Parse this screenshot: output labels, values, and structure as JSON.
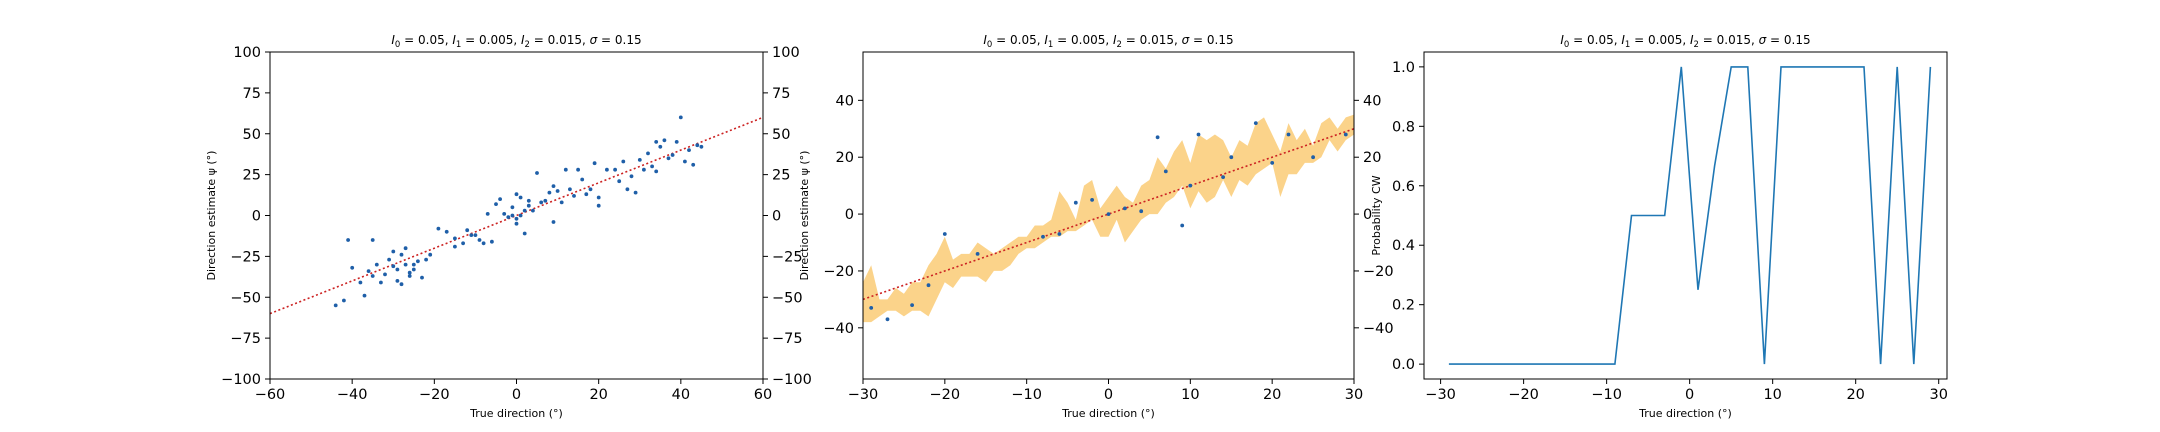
{
  "chart_data": [
    {
      "type": "scatter",
      "title": "I_0 = 0.05, I_1 = 0.005, I_2 = 0.015, σ = 0.15",
      "title_parts": {
        "I0": "0.05",
        "I1": "0.005",
        "I2": "0.015",
        "sigma": "0.15"
      },
      "xlabel": "True direction (°)",
      "ylabel": "Direction estimate ψ (°)",
      "xlim": [
        -60,
        60
      ],
      "ylim": [
        -100,
        100
      ],
      "xticks": [
        -60,
        -40,
        -20,
        0,
        20,
        40,
        60
      ],
      "yticks": [
        -100,
        -75,
        -50,
        -25,
        0,
        25,
        50,
        75,
        100
      ],
      "right_axis_ticks": [
        -100,
        -75,
        -50,
        -25,
        0,
        25,
        50,
        75,
        100
      ],
      "grid": false,
      "colors": {
        "points": "#1f5fa8",
        "fit_line": "#cc2222"
      },
      "fit_line": {
        "slope": 1,
        "intercept": 0,
        "style": "dotted"
      },
      "points": [
        [
          -44,
          -55
        ],
        [
          -42,
          -52
        ],
        [
          -41,
          -15
        ],
        [
          -40,
          -32
        ],
        [
          -38,
          -41
        ],
        [
          -37,
          -49
        ],
        [
          -36,
          -34
        ],
        [
          -35,
          -37
        ],
        [
          -35,
          -15
        ],
        [
          -34,
          -30
        ],
        [
          -33,
          -41
        ],
        [
          -32,
          -36
        ],
        [
          -31,
          -27
        ],
        [
          -30,
          -31
        ],
        [
          -30,
          -22
        ],
        [
          -29,
          -40
        ],
        [
          -29,
          -33
        ],
        [
          -28,
          -24
        ],
        [
          -28,
          -42
        ],
        [
          -27,
          -30
        ],
        [
          -27,
          -20
        ],
        [
          -26,
          -35
        ],
        [
          -26,
          -37
        ],
        [
          -25,
          -33
        ],
        [
          -25,
          -30
        ],
        [
          -24,
          -28
        ],
        [
          -23,
          -38
        ],
        [
          -22,
          -27
        ],
        [
          -21,
          -24
        ],
        [
          -19,
          -8
        ],
        [
          -17,
          -10
        ],
        [
          -15,
          -14
        ],
        [
          -15,
          -19
        ],
        [
          -13,
          -17
        ],
        [
          -12,
          -9
        ],
        [
          -11,
          -12
        ],
        [
          -10,
          -12
        ],
        [
          -9,
          -15
        ],
        [
          -8,
          -17
        ],
        [
          -7,
          1
        ],
        [
          -6,
          -16
        ],
        [
          -5,
          7
        ],
        [
          -4,
          10
        ],
        [
          -3,
          1
        ],
        [
          -2,
          -1
        ],
        [
          -1,
          5
        ],
        [
          -1,
          0
        ],
        [
          0,
          13
        ],
        [
          0,
          -2
        ],
        [
          0,
          -5
        ],
        [
          1,
          11
        ],
        [
          1,
          0
        ],
        [
          2,
          3
        ],
        [
          2,
          -11
        ],
        [
          3,
          9
        ],
        [
          3,
          6
        ],
        [
          4,
          3
        ],
        [
          5,
          26
        ],
        [
          6,
          8
        ],
        [
          7,
          9
        ],
        [
          8,
          14
        ],
        [
          9,
          18
        ],
        [
          9,
          -4
        ],
        [
          10,
          15
        ],
        [
          11,
          8
        ],
        [
          12,
          28
        ],
        [
          13,
          16
        ],
        [
          14,
          12
        ],
        [
          15,
          28
        ],
        [
          16,
          22
        ],
        [
          17,
          13
        ],
        [
          18,
          16
        ],
        [
          19,
          32
        ],
        [
          20,
          11
        ],
        [
          20,
          6
        ],
        [
          22,
          28
        ],
        [
          24,
          28
        ],
        [
          25,
          21
        ],
        [
          26,
          33
        ],
        [
          27,
          16
        ],
        [
          28,
          24
        ],
        [
          29,
          14
        ],
        [
          30,
          34
        ],
        [
          31,
          28
        ],
        [
          32,
          38
        ],
        [
          33,
          30
        ],
        [
          34,
          45
        ],
        [
          34,
          27
        ],
        [
          35,
          42
        ],
        [
          36,
          46
        ],
        [
          37,
          35
        ],
        [
          38,
          37
        ],
        [
          39,
          45
        ],
        [
          40,
          60
        ],
        [
          41,
          33
        ],
        [
          42,
          40
        ],
        [
          43,
          31
        ],
        [
          44,
          43
        ],
        [
          45,
          42
        ]
      ]
    },
    {
      "type": "area",
      "title": "I_0 = 0.05, I_1 = 0.005, I_2 = 0.015, σ = 0.15",
      "title_parts": {
        "I0": "0.05",
        "I1": "0.005",
        "I2": "0.015",
        "sigma": "0.15"
      },
      "xlabel": "True direction (°)",
      "ylabel": "Direction estimate ψ (°)",
      "xlim": [
        -30,
        30
      ],
      "ylim": [
        -58,
        57
      ],
      "xticks": [
        -30,
        -20,
        -10,
        0,
        10,
        20,
        30
      ],
      "yticks": [
        -40,
        -20,
        0,
        20,
        40
      ],
      "right_axis_ticks": [
        -40,
        -20,
        0,
        20,
        40
      ],
      "grid": false,
      "colors": {
        "band": "#fbd38a",
        "points": "#1f5fa8",
        "fit_line": "#cc2222"
      },
      "fit_line": {
        "slope": 1,
        "intercept": 0,
        "style": "dotted"
      },
      "band": {
        "x": [
          -30,
          -29,
          -28,
          -27,
          -26,
          -25,
          -24,
          -23,
          -22,
          -21,
          -20,
          -19,
          -18,
          -17,
          -16,
          -15,
          -14,
          -13,
          -12,
          -11,
          -10,
          -9,
          -8,
          -7,
          -6,
          -5,
          -4,
          -3,
          -2,
          -1,
          0,
          1,
          2,
          3,
          4,
          5,
          6,
          7,
          8,
          9,
          10,
          11,
          12,
          13,
          14,
          15,
          16,
          17,
          18,
          19,
          20,
          21,
          22,
          23,
          24,
          25,
          26,
          27,
          28,
          29,
          30
        ],
        "upper": [
          -24,
          -18,
          -30,
          -30,
          -26,
          -28,
          -24,
          -24,
          -18,
          -14,
          -8,
          -16,
          -14,
          -14,
          -10,
          -12,
          -14,
          -12,
          -10,
          -8,
          -8,
          -4,
          -4,
          -2,
          8,
          4,
          -2,
          10,
          12,
          2,
          6,
          10,
          6,
          4,
          10,
          12,
          20,
          16,
          22,
          26,
          18,
          28,
          26,
          28,
          26,
          20,
          26,
          24,
          32,
          34,
          28,
          22,
          32,
          26,
          30,
          24,
          32,
          34,
          30,
          34,
          35
        ],
        "lower": [
          -38,
          -38,
          -36,
          -34,
          -34,
          -36,
          -34,
          -34,
          -36,
          -30,
          -24,
          -26,
          -22,
          -22,
          -22,
          -24,
          -20,
          -20,
          -18,
          -14,
          -12,
          -12,
          -10,
          -8,
          -8,
          -6,
          -6,
          -4,
          -2,
          -8,
          -8,
          -2,
          -10,
          -6,
          -2,
          0,
          0,
          4,
          6,
          10,
          2,
          8,
          4,
          6,
          12,
          6,
          12,
          10,
          14,
          16,
          18,
          6,
          14,
          14,
          18,
          18,
          20,
          26,
          22,
          26,
          28
        ]
      },
      "points": [
        [
          -29,
          -33
        ],
        [
          -27,
          -37
        ],
        [
          -24,
          -32
        ],
        [
          -22,
          -25
        ],
        [
          -20,
          -7
        ],
        [
          -16,
          -14
        ],
        [
          -8,
          -8
        ],
        [
          -6,
          -7
        ],
        [
          -4,
          4
        ],
        [
          -2,
          5
        ],
        [
          0,
          0
        ],
        [
          2,
          2
        ],
        [
          4,
          1
        ],
        [
          6,
          27
        ],
        [
          7,
          15
        ],
        [
          9,
          -4
        ],
        [
          10,
          10
        ],
        [
          11,
          28
        ],
        [
          14,
          13
        ],
        [
          15,
          20
        ],
        [
          18,
          32
        ],
        [
          20,
          18
        ],
        [
          22,
          28
        ],
        [
          25,
          20
        ],
        [
          29,
          28
        ]
      ]
    },
    {
      "type": "line",
      "title": "I_0 = 0.05, I_1 = 0.005, I_2 = 0.015, σ = 0.15",
      "title_parts": {
        "I0": "0.05",
        "I1": "0.005",
        "I2": "0.015",
        "sigma": "0.15"
      },
      "xlabel": "True direction (°)",
      "ylabel": "Probability CW",
      "xlim": [
        -32,
        31
      ],
      "ylim": [
        -0.05,
        1.05
      ],
      "xticks": [
        -30,
        -20,
        -10,
        0,
        10,
        20,
        30
      ],
      "yticks": [
        0.0,
        0.2,
        0.4,
        0.6,
        0.8,
        1.0
      ],
      "ytick_labels": [
        "0.0",
        "0.2",
        "0.4",
        "0.6",
        "0.8",
        "1.0"
      ],
      "grid": false,
      "colors": {
        "line": "#1f77b4"
      },
      "x": [
        -29,
        -27,
        -25,
        -23,
        -21,
        -19,
        -17,
        -15,
        -13,
        -11,
        -9,
        -7,
        -5,
        -3,
        -1,
        1,
        3,
        5,
        7,
        9,
        11,
        13,
        15,
        17,
        19,
        21,
        23,
        25,
        27,
        29
      ],
      "y": [
        0,
        0,
        0,
        0,
        0,
        0,
        0,
        0,
        0,
        0,
        0,
        0.5,
        0.5,
        0.5,
        1,
        0.25,
        0.667,
        1,
        1,
        0,
        1,
        1,
        1,
        1,
        1,
        1,
        0,
        1,
        0,
        1
      ]
    }
  ]
}
